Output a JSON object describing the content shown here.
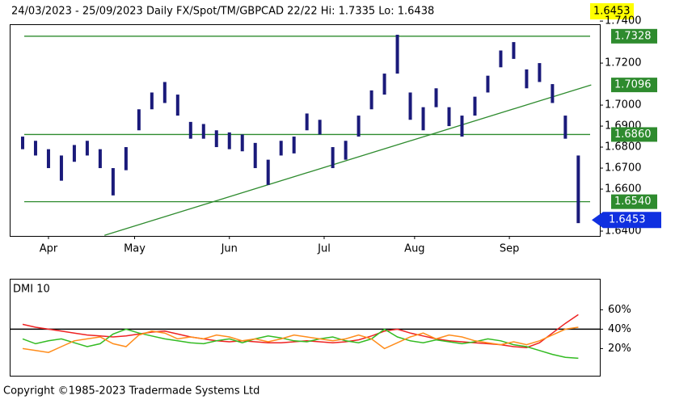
{
  "chart_data": [
    {
      "type": "ohlc",
      "title": "24/03/2023 - 25/09/2023  Daily  FX/Spot/TM/GBPCAD 22/22  Hi: 1.7335  Lo: 1.6438",
      "last": {
        "value": 1.6453,
        "label": "1.6453"
      },
      "x": [
        0,
        3,
        6,
        9,
        12,
        15,
        18,
        21,
        24,
        27,
        30,
        33,
        36,
        39,
        42,
        45,
        48,
        51,
        54,
        57,
        60,
        63,
        66,
        69,
        72,
        75,
        78,
        81,
        84,
        87,
        90,
        93,
        96,
        99,
        102,
        105,
        108,
        111,
        114,
        117,
        120,
        123,
        126,
        129
      ],
      "high": [
        1.685,
        1.683,
        1.679,
        1.676,
        1.681,
        1.683,
        1.679,
        1.67,
        1.68,
        1.698,
        1.706,
        1.711,
        1.705,
        1.692,
        1.691,
        1.688,
        1.687,
        1.686,
        1.682,
        1.674,
        1.683,
        1.685,
        1.696,
        1.693,
        1.68,
        1.683,
        1.695,
        1.707,
        1.715,
        1.7335,
        1.706,
        1.699,
        1.708,
        1.699,
        1.695,
        1.704,
        1.714,
        1.726,
        1.73,
        1.717,
        1.72,
        1.71,
        1.695,
        1.676
      ],
      "low": [
        1.679,
        1.676,
        1.67,
        1.664,
        1.673,
        1.676,
        1.67,
        1.657,
        1.669,
        1.688,
        1.698,
        1.701,
        1.695,
        1.684,
        1.684,
        1.68,
        1.679,
        1.678,
        1.67,
        1.662,
        1.676,
        1.677,
        1.688,
        1.686,
        1.67,
        1.674,
        1.685,
        1.698,
        1.705,
        1.715,
        1.693,
        1.688,
        1.699,
        1.69,
        1.685,
        1.695,
        1.706,
        1.718,
        1.722,
        1.708,
        1.711,
        1.701,
        1.684,
        1.6438
      ],
      "color": "#1a1a7a",
      "xlim": [
        -3,
        134
      ],
      "xticks": [
        {
          "value": 6,
          "label": "Apr"
        },
        {
          "value": 26,
          "label": "May"
        },
        {
          "value": 48,
          "label": "Jun"
        },
        {
          "value": 70,
          "label": "Jul"
        },
        {
          "value": 91,
          "label": "Aug"
        },
        {
          "value": 113,
          "label": "Sep"
        }
      ],
      "ylim": [
        1.6377,
        1.7385
      ],
      "yticks": [
        {
          "value": 1.64,
          "label": "1.6400"
        },
        {
          "value": 1.66,
          "label": "1.6600"
        },
        {
          "value": 1.67,
          "label": "1.6700"
        },
        {
          "value": 1.68,
          "label": "1.6800"
        },
        {
          "value": 1.69,
          "label": "1.6900"
        },
        {
          "value": 1.7,
          "label": "1.7000"
        },
        {
          "value": 1.72,
          "label": "1.7200"
        },
        {
          "value": 1.74,
          "label": "1.7400"
        }
      ],
      "levels": [
        {
          "value": 1.7328,
          "label": "1.7328"
        },
        {
          "value": 1.686,
          "label": "1.6860"
        },
        {
          "value": 1.654,
          "label": "1.6540"
        }
      ],
      "trendline": {
        "x": [
          19,
          132
        ],
        "values": [
          1.638,
          1.7096
        ]
      },
      "level_color": "#2e8b2e"
    },
    {
      "type": "line",
      "title": "DMI 10",
      "x": [
        0,
        3,
        6,
        9,
        12,
        15,
        18,
        21,
        24,
        27,
        30,
        33,
        36,
        39,
        42,
        45,
        48,
        51,
        54,
        57,
        60,
        63,
        66,
        69,
        72,
        75,
        78,
        81,
        84,
        87,
        90,
        93,
        96,
        99,
        102,
        105,
        108,
        111,
        114,
        117,
        120,
        123,
        126,
        129
      ],
      "series": [
        {
          "color": "#ee2222",
          "values": [
            45,
            42,
            40,
            38,
            36,
            34,
            33,
            32,
            33,
            35,
            37,
            38,
            35,
            32,
            30,
            28,
            27,
            28,
            27,
            26,
            26,
            27,
            28,
            27,
            26,
            27,
            29,
            33,
            38,
            40,
            36,
            33,
            30,
            28,
            27,
            26,
            25,
            24,
            22,
            21,
            26,
            36,
            46,
            55
          ]
        },
        {
          "color": "#33bb22",
          "values": [
            30,
            25,
            28,
            30,
            26,
            22,
            25,
            35,
            40,
            36,
            33,
            30,
            28,
            26,
            25,
            28,
            30,
            26,
            30,
            33,
            31,
            28,
            27,
            30,
            32,
            28,
            26,
            30,
            40,
            32,
            28,
            26,
            29,
            27,
            25,
            27,
            30,
            28,
            24,
            22,
            18,
            14,
            11,
            10
          ]
        },
        {
          "color": "#ff8c1a",
          "values": [
            20,
            18,
            16,
            22,
            28,
            30,
            32,
            25,
            22,
            34,
            38,
            36,
            30,
            32,
            30,
            34,
            32,
            28,
            30,
            27,
            30,
            34,
            32,
            30,
            28,
            30,
            34,
            30,
            20,
            26,
            32,
            36,
            30,
            34,
            32,
            28,
            26,
            24,
            27,
            24,
            28,
            34,
            40,
            42
          ]
        }
      ],
      "xlim": [
        -3,
        134
      ],
      "ylim": [
        -8,
        92
      ],
      "yticks": [
        {
          "value": 20,
          "label": "20%"
        },
        {
          "value": 40,
          "label": "40%"
        },
        {
          "value": 60,
          "label": "60%"
        }
      ]
    }
  ],
  "footer": "Copyright ©1985-2023 Tradermade Systems Ltd"
}
